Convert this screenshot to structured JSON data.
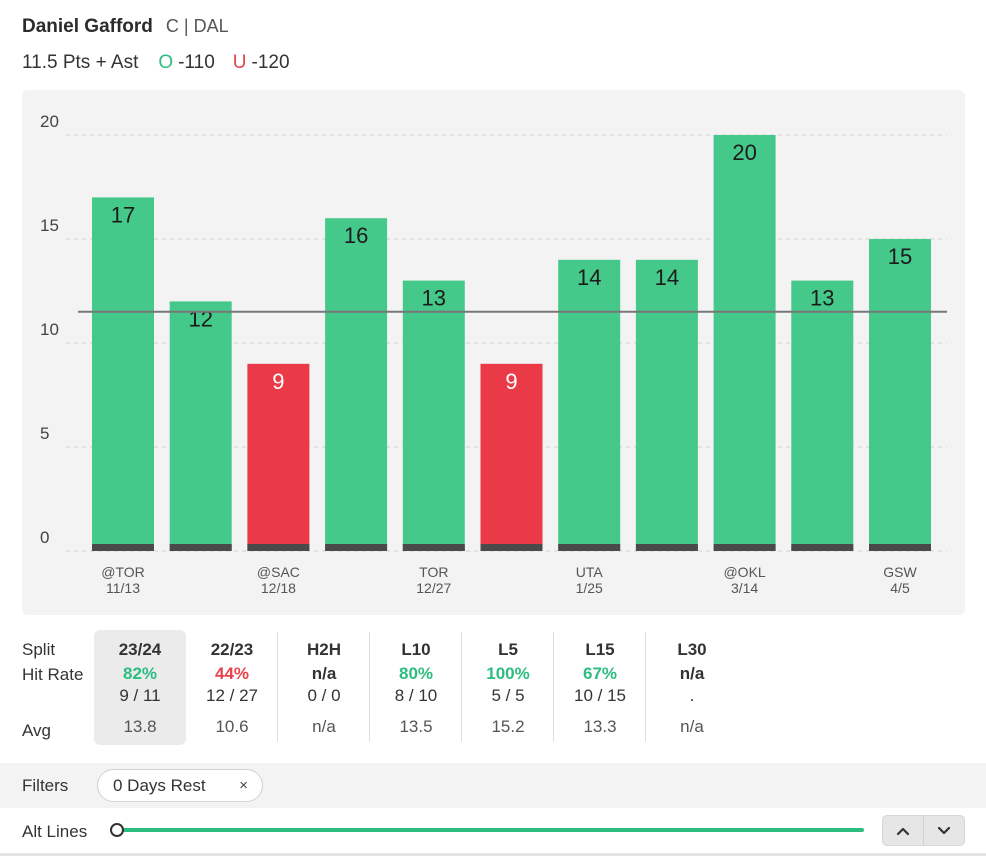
{
  "player": {
    "name": "Daniel Gafford",
    "meta": "C | DAL",
    "market": "11.5 Pts + Ast",
    "over_label": "O",
    "over_odds": "-110",
    "under_label": "U",
    "under_odds": "-120"
  },
  "colors": {
    "over": "#45c98b",
    "under": "#ea3a47",
    "card": "#f3f3f3"
  },
  "chart_data": {
    "type": "bar",
    "line": 11.5,
    "ylim": [
      0,
      20
    ],
    "yticks": [
      0,
      5,
      10,
      15,
      20
    ],
    "values": [
      17,
      12,
      9,
      16,
      13,
      9,
      14,
      14,
      20,
      13,
      15
    ],
    "x_labels": [
      {
        "index": 0,
        "opponent": "@TOR",
        "date": "11/13"
      },
      {
        "index": 2,
        "opponent": "@SAC",
        "date": "12/18"
      },
      {
        "index": 4,
        "opponent": "TOR",
        "date": "12/27"
      },
      {
        "index": 6,
        "opponent": "UTA",
        "date": "1/25"
      },
      {
        "index": 8,
        "opponent": "@OKL",
        "date": "3/14"
      },
      {
        "index": 10,
        "opponent": "GSW",
        "date": "4/5"
      }
    ]
  },
  "splits": {
    "labels": {
      "split": "Split",
      "hit_rate": "Hit Rate",
      "avg": "Avg"
    },
    "columns": [
      {
        "name": "23/24",
        "rate": "82%",
        "frac": "9 / 11",
        "avg": "13.8",
        "tone": "green",
        "selected": true
      },
      {
        "name": "22/23",
        "rate": "44%",
        "frac": "12 / 27",
        "avg": "10.6",
        "tone": "red",
        "selected": false
      },
      {
        "name": "H2H",
        "rate": "n/a",
        "frac": "0 / 0",
        "avg": "n/a",
        "tone": "dark",
        "selected": false
      },
      {
        "name": "L10",
        "rate": "80%",
        "frac": "8 / 10",
        "avg": "13.5",
        "tone": "green",
        "selected": false
      },
      {
        "name": "L5",
        "rate": "100%",
        "frac": "5 / 5",
        "avg": "15.2",
        "tone": "green",
        "selected": false
      },
      {
        "name": "L15",
        "rate": "67%",
        "frac": "10 / 15",
        "avg": "13.3",
        "tone": "green",
        "selected": false
      },
      {
        "name": "L30",
        "rate": "n/a",
        "frac": ".",
        "avg": "n/a",
        "tone": "dark",
        "selected": false
      }
    ]
  },
  "filters": {
    "label": "Filters",
    "chip": "0 Days Rest",
    "chip_remove": "×"
  },
  "alt_lines": {
    "label": "Alt Lines",
    "slider_value": 0
  }
}
